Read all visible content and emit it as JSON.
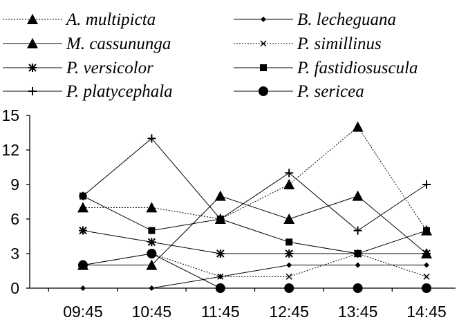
{
  "chart_data": {
    "type": "line",
    "title": "",
    "xlabel": "",
    "ylabel": "",
    "categories": [
      "09:45",
      "10:45",
      "11:45",
      "12:45",
      "13:45",
      "14:45"
    ],
    "ylim": [
      0,
      15
    ],
    "yticks": [
      0,
      3,
      6,
      9,
      12,
      15
    ],
    "grid": false,
    "legend_position": "top",
    "series": [
      {
        "name": "A. multipicta",
        "values": [
          7,
          7,
          6,
          9,
          14,
          5
        ],
        "line_style": "dotted",
        "marker": "triangle"
      },
      {
        "name": "B. lecheguana",
        "values": [
          0,
          0,
          1,
          2,
          2,
          2
        ],
        "line_style": "solid",
        "marker": "small-diamond"
      },
      {
        "name": "M. cassununga",
        "values": [
          2,
          2,
          8,
          6,
          8,
          3
        ],
        "line_style": "solid",
        "marker": "triangle"
      },
      {
        "name": "P. simillinus",
        "values": [
          2,
          3,
          1,
          1,
          3,
          1
        ],
        "line_style": "dotted",
        "marker": "x"
      },
      {
        "name": "P. versicolor",
        "values": [
          5,
          4,
          3,
          3,
          3,
          3
        ],
        "line_style": "solid",
        "marker": "asterisk"
      },
      {
        "name": "P. fastidiosuscula",
        "values": [
          8,
          5,
          6,
          4,
          3,
          5
        ],
        "line_style": "solid",
        "marker": "square"
      },
      {
        "name": "P. platycephala",
        "values": [
          8,
          13,
          6,
          10,
          5,
          9
        ],
        "line_style": "solid",
        "marker": "plus"
      },
      {
        "name": "P. sericea",
        "values": [
          2,
          3,
          0,
          0,
          0,
          0
        ],
        "line_style": "solid",
        "marker": "circle"
      }
    ]
  }
}
